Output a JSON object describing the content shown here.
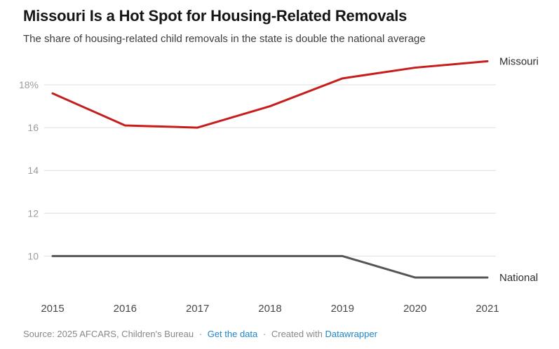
{
  "header": {
    "title": "Missouri Is a Hot Spot for Housing-Related Removals",
    "subtitle": "The share of housing-related child removals in the state is double the national average"
  },
  "chart_data": {
    "type": "line",
    "x": [
      2015,
      2016,
      2017,
      2018,
      2019,
      2020,
      2021
    ],
    "series": [
      {
        "name": "Missouri",
        "color": "#c71e1d",
        "values": [
          17.6,
          16.1,
          16.0,
          17.0,
          18.3,
          18.8,
          19.1
        ]
      },
      {
        "name": "National",
        "color": "#555555",
        "values": [
          10,
          10,
          10,
          10,
          10,
          9,
          9
        ]
      }
    ],
    "yticks": [
      {
        "value": 18,
        "label": "18%"
      },
      {
        "value": 16,
        "label": "16"
      },
      {
        "value": 14,
        "label": "14"
      },
      {
        "value": 12,
        "label": "12"
      },
      {
        "value": 10,
        "label": "10"
      }
    ],
    "ylim": [
      8.6,
      19.6
    ],
    "unit": "percent",
    "grid": true,
    "legend_position": "line-end-labels",
    "colors": {
      "gridline": "#dedede",
      "y_tick_label": "#9c9c9c",
      "x_tick_label": "#494949",
      "series_end_label": "#2e2e2e"
    }
  },
  "footer": {
    "source": "Source: 2025 AFCARS, Children's Bureau",
    "separator": "·",
    "get_the_data": "Get the data",
    "created_with": "Created with",
    "datawrapper": "Datawrapper",
    "link_color": "#1d87c9"
  }
}
